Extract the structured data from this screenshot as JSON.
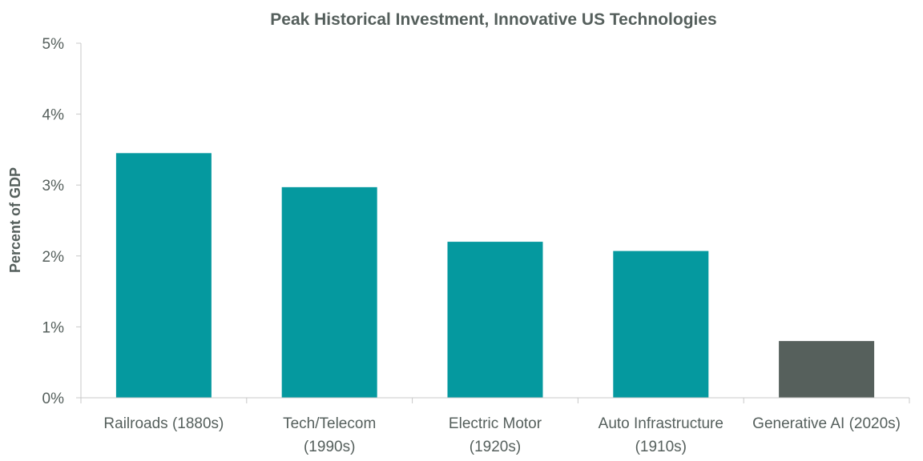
{
  "chart_data": {
    "type": "bar",
    "title": "Peak Historical Investment, Innovative US Technologies",
    "xlabel": "",
    "ylabel": "Percent of GDP",
    "ylim": [
      0,
      5
    ],
    "y_ticks": [
      "0%",
      "1%",
      "2%",
      "3%",
      "4%",
      "5%"
    ],
    "y_tick_values": [
      0,
      1,
      2,
      3,
      4,
      5
    ],
    "grid": false,
    "categories": [
      [
        "Railroads (1880s)"
      ],
      [
        "Tech/Telecom",
        "(1990s)"
      ],
      [
        "Electric Motor",
        "(1920s)"
      ],
      [
        "Auto Infrastructure",
        "(1910s)"
      ],
      [
        "Generative AI (2020s)"
      ]
    ],
    "values": [
      3.45,
      2.97,
      2.2,
      2.07,
      0.8
    ],
    "colors": [
      "#05999f",
      "#05999f",
      "#05999f",
      "#05999f",
      "#56605c"
    ]
  }
}
